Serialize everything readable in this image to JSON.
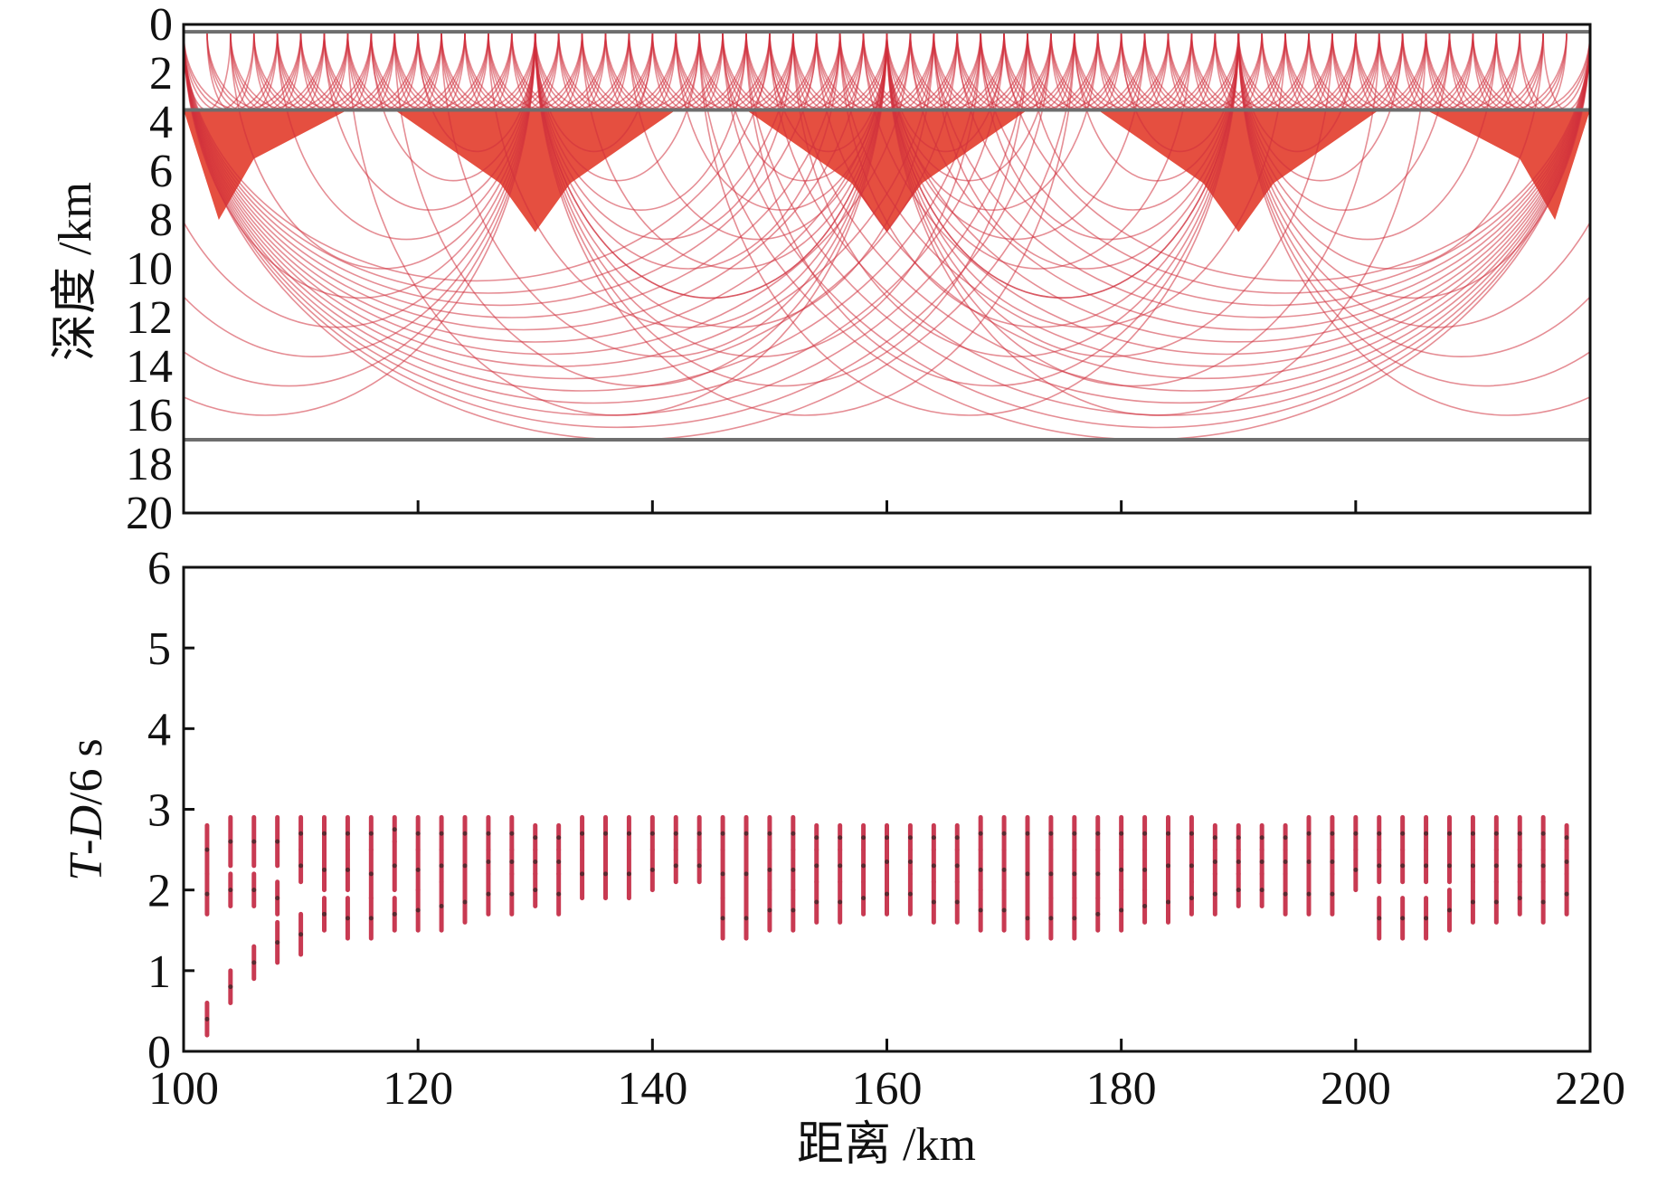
{
  "chart_data": [
    {
      "type": "line",
      "panel": "top",
      "title": "",
      "xlabel": "",
      "ylabel": "深度 /km",
      "xlim": [
        100,
        220
      ],
      "ylim": [
        0,
        20
      ],
      "y_inverted": true,
      "xticks": [
        100,
        120,
        140,
        160,
        180,
        200,
        220
      ],
      "yticks": [
        0,
        2,
        4,
        6,
        8,
        10,
        12,
        14,
        16,
        18,
        20
      ],
      "ytick_labels": [
        "0",
        "2",
        "4",
        "6",
        "8",
        "10",
        "12",
        "14",
        "16",
        "18",
        "20"
      ],
      "layer_boundaries_km": [
        0.3,
        3.5,
        17.0
      ],
      "ray_sources_x": [
        100,
        130,
        160,
        190,
        220
      ],
      "arc_groups": [
        {
          "name": "surface-rays",
          "x_start": 100,
          "x_end": 220,
          "step": 2,
          "spans": [
            4,
            6,
            8,
            10
          ]
        },
        {
          "name": "deep-rays-left",
          "from": 100,
          "to_min": 150,
          "to_max": 176,
          "step": 2
        },
        {
          "name": "deep-rays-right",
          "from": 220,
          "to_min": 144,
          "to_max": 170,
          "step": 2
        }
      ],
      "series": [
        {
          "name": "layer boundary 1",
          "depth": 0.3
        },
        {
          "name": "layer boundary 2",
          "depth": 3.5
        },
        {
          "name": "layer boundary 3",
          "depth": 17.0
        }
      ]
    },
    {
      "type": "scatter",
      "panel": "bottom",
      "title": "",
      "xlabel": "距离 /km",
      "ylabel_T": "T",
      "ylabel_dash": "-",
      "ylabel_D": "D",
      "ylabel_rest": "/6 s",
      "xlim": [
        100,
        220
      ],
      "ylim": [
        0,
        6
      ],
      "xticks": [
        100,
        120,
        140,
        160,
        180,
        200,
        220
      ],
      "xtick_labels": [
        "100",
        "120",
        "140",
        "160",
        "180",
        "200",
        "220"
      ],
      "yticks": [
        0,
        1,
        2,
        3,
        4,
        5,
        6
      ],
      "ytick_labels": [
        "0",
        "1",
        "2",
        "3",
        "4",
        "5",
        "6"
      ],
      "traces": [
        {
          "x": 102,
          "segments": [
            [
              0.2,
              0.6
            ],
            [
              1.7,
              2.2
            ],
            [
              2.2,
              2.8
            ]
          ]
        },
        {
          "x": 104,
          "segments": [
            [
              0.6,
              1.0
            ],
            [
              1.8,
              2.2
            ],
            [
              2.3,
              2.9
            ]
          ]
        },
        {
          "x": 106,
          "segments": [
            [
              0.9,
              1.3
            ],
            [
              1.8,
              2.2
            ],
            [
              2.3,
              2.9
            ]
          ]
        },
        {
          "x": 108,
          "segments": [
            [
              1.1,
              1.6
            ],
            [
              1.7,
              2.1
            ],
            [
              2.3,
              2.9
            ]
          ]
        },
        {
          "x": 110,
          "segments": [
            [
              1.2,
              1.7
            ],
            [
              2.1,
              2.5
            ],
            [
              2.5,
              2.9
            ]
          ]
        },
        {
          "x": 112,
          "segments": [
            [
              1.5,
              1.9
            ],
            [
              2.0,
              2.5
            ],
            [
              2.5,
              2.9
            ]
          ]
        },
        {
          "x": 114,
          "segments": [
            [
              1.4,
              1.9
            ],
            [
              2.0,
              2.5
            ],
            [
              2.5,
              2.9
            ]
          ]
        },
        {
          "x": 116,
          "segments": [
            [
              1.4,
              1.9
            ],
            [
              1.9,
              2.5
            ],
            [
              2.5,
              2.9
            ]
          ]
        },
        {
          "x": 118,
          "segments": [
            [
              1.5,
              1.9
            ],
            [
              2.0,
              2.6
            ],
            [
              2.6,
              2.9
            ]
          ]
        },
        {
          "x": 120,
          "segments": [
            [
              1.5,
              2.0
            ],
            [
              2.0,
              2.5
            ],
            [
              2.5,
              2.9
            ]
          ]
        },
        {
          "x": 122,
          "segments": [
            [
              1.5,
              2.1
            ],
            [
              2.1,
              2.5
            ],
            [
              2.5,
              2.9
            ]
          ]
        },
        {
          "x": 124,
          "segments": [
            [
              1.6,
              2.1
            ],
            [
              2.1,
              2.5
            ],
            [
              2.5,
              2.9
            ]
          ]
        },
        {
          "x": 126,
          "segments": [
            [
              1.7,
              2.2
            ],
            [
              2.2,
              2.5
            ],
            [
              2.5,
              2.9
            ]
          ]
        },
        {
          "x": 128,
          "segments": [
            [
              1.7,
              2.2
            ],
            [
              2.2,
              2.5
            ],
            [
              2.5,
              2.9
            ]
          ]
        },
        {
          "x": 130,
          "segments": [
            [
              1.8,
              2.2
            ],
            [
              2.2,
              2.5
            ],
            [
              2.5,
              2.8
            ]
          ]
        },
        {
          "x": 132,
          "segments": [
            [
              1.7,
              2.2
            ],
            [
              2.2,
              2.5
            ],
            [
              2.5,
              2.8
            ]
          ]
        },
        {
          "x": 134,
          "segments": [
            [
              1.9,
              2.5
            ],
            [
              2.5,
              2.9
            ]
          ]
        },
        {
          "x": 136,
          "segments": [
            [
              1.9,
              2.5
            ],
            [
              2.5,
              2.9
            ]
          ]
        },
        {
          "x": 138,
          "segments": [
            [
              1.9,
              2.5
            ],
            [
              2.5,
              2.9
            ]
          ]
        },
        {
          "x": 140,
          "segments": [
            [
              2.0,
              2.5
            ],
            [
              2.5,
              2.9
            ]
          ]
        },
        {
          "x": 142,
          "segments": [
            [
              2.1,
              2.5
            ],
            [
              2.5,
              2.9
            ]
          ]
        },
        {
          "x": 144,
          "segments": [
            [
              2.1,
              2.5
            ],
            [
              2.5,
              2.9
            ]
          ]
        },
        {
          "x": 146,
          "segments": [
            [
              1.4,
              1.9
            ],
            [
              1.9,
              2.5
            ],
            [
              2.5,
              2.9
            ]
          ]
        },
        {
          "x": 148,
          "segments": [
            [
              1.4,
              1.9
            ],
            [
              1.9,
              2.5
            ],
            [
              2.5,
              2.9
            ]
          ]
        },
        {
          "x": 150,
          "segments": [
            [
              1.5,
              2.0
            ],
            [
              2.0,
              2.5
            ],
            [
              2.5,
              2.9
            ]
          ]
        },
        {
          "x": 152,
          "segments": [
            [
              1.5,
              2.0
            ],
            [
              2.0,
              2.5
            ],
            [
              2.5,
              2.9
            ]
          ]
        },
        {
          "x": 154,
          "segments": [
            [
              1.6,
              2.1
            ],
            [
              2.1,
              2.5
            ],
            [
              2.5,
              2.8
            ]
          ]
        },
        {
          "x": 156,
          "segments": [
            [
              1.6,
              2.1
            ],
            [
              2.1,
              2.5
            ],
            [
              2.5,
              2.8
            ]
          ]
        },
        {
          "x": 158,
          "segments": [
            [
              1.7,
              2.1
            ],
            [
              2.1,
              2.5
            ],
            [
              2.5,
              2.8
            ]
          ]
        },
        {
          "x": 160,
          "segments": [
            [
              1.7,
              2.2
            ],
            [
              2.2,
              2.5
            ],
            [
              2.5,
              2.8
            ]
          ]
        },
        {
          "x": 162,
          "segments": [
            [
              1.7,
              2.2
            ],
            [
              2.2,
              2.5
            ],
            [
              2.5,
              2.8
            ]
          ]
        },
        {
          "x": 164,
          "segments": [
            [
              1.6,
              2.1
            ],
            [
              2.1,
              2.5
            ],
            [
              2.5,
              2.8
            ]
          ]
        },
        {
          "x": 166,
          "segments": [
            [
              1.6,
              2.1
            ],
            [
              2.1,
              2.5
            ],
            [
              2.5,
              2.8
            ]
          ]
        },
        {
          "x": 168,
          "segments": [
            [
              1.5,
              2.0
            ],
            [
              2.0,
              2.5
            ],
            [
              2.5,
              2.9
            ]
          ]
        },
        {
          "x": 170,
          "segments": [
            [
              1.5,
              2.0
            ],
            [
              2.0,
              2.5
            ],
            [
              2.5,
              2.9
            ]
          ]
        },
        {
          "x": 172,
          "segments": [
            [
              1.4,
              1.9
            ],
            [
              1.9,
              2.5
            ],
            [
              2.5,
              2.9
            ]
          ]
        },
        {
          "x": 174,
          "segments": [
            [
              1.4,
              1.9
            ],
            [
              1.9,
              2.5
            ],
            [
              2.5,
              2.9
            ]
          ]
        },
        {
          "x": 176,
          "segments": [
            [
              1.4,
              1.9
            ],
            [
              1.9,
              2.5
            ],
            [
              2.5,
              2.9
            ]
          ]
        },
        {
          "x": 178,
          "segments": [
            [
              1.5,
              1.9
            ],
            [
              1.9,
              2.5
            ],
            [
              2.5,
              2.9
            ]
          ]
        },
        {
          "x": 180,
          "segments": [
            [
              1.5,
              2.0
            ],
            [
              2.0,
              2.5
            ],
            [
              2.5,
              2.9
            ]
          ]
        },
        {
          "x": 182,
          "segments": [
            [
              1.6,
              2.0
            ],
            [
              2.0,
              2.5
            ],
            [
              2.5,
              2.9
            ]
          ]
        },
        {
          "x": 184,
          "segments": [
            [
              1.6,
              2.1
            ],
            [
              2.1,
              2.5
            ],
            [
              2.5,
              2.9
            ]
          ]
        },
        {
          "x": 186,
          "segments": [
            [
              1.7,
              2.1
            ],
            [
              2.1,
              2.5
            ],
            [
              2.5,
              2.9
            ]
          ]
        },
        {
          "x": 188,
          "segments": [
            [
              1.7,
              2.2
            ],
            [
              2.2,
              2.5
            ],
            [
              2.5,
              2.8
            ]
          ]
        },
        {
          "x": 190,
          "segments": [
            [
              1.8,
              2.2
            ],
            [
              2.2,
              2.5
            ],
            [
              2.5,
              2.8
            ]
          ]
        },
        {
          "x": 192,
          "segments": [
            [
              1.8,
              2.2
            ],
            [
              2.2,
              2.5
            ],
            [
              2.5,
              2.8
            ]
          ]
        },
        {
          "x": 194,
          "segments": [
            [
              1.7,
              2.2
            ],
            [
              2.2,
              2.5
            ],
            [
              2.5,
              2.8
            ]
          ]
        },
        {
          "x": 196,
          "segments": [
            [
              1.7,
              2.2
            ],
            [
              2.2,
              2.5
            ],
            [
              2.5,
              2.9
            ]
          ]
        },
        {
          "x": 198,
          "segments": [
            [
              1.7,
              2.2
            ],
            [
              2.2,
              2.5
            ],
            [
              2.5,
              2.9
            ]
          ]
        },
        {
          "x": 200,
          "segments": [
            [
              2.0,
              2.5
            ],
            [
              2.5,
              2.9
            ]
          ]
        },
        {
          "x": 202,
          "segments": [
            [
              1.4,
              1.9
            ],
            [
              2.1,
              2.5
            ],
            [
              2.5,
              2.9
            ]
          ]
        },
        {
          "x": 204,
          "segments": [
            [
              1.4,
              1.9
            ],
            [
              2.1,
              2.5
            ],
            [
              2.5,
              2.9
            ]
          ]
        },
        {
          "x": 206,
          "segments": [
            [
              1.4,
              1.9
            ],
            [
              2.1,
              2.5
            ],
            [
              2.5,
              2.9
            ]
          ]
        },
        {
          "x": 208,
          "segments": [
            [
              1.5,
              2.0
            ],
            [
              2.1,
              2.5
            ],
            [
              2.5,
              2.9
            ]
          ]
        },
        {
          "x": 210,
          "segments": [
            [
              1.6,
              2.1
            ],
            [
              2.1,
              2.5
            ],
            [
              2.5,
              2.9
            ]
          ]
        },
        {
          "x": 212,
          "segments": [
            [
              1.6,
              2.1
            ],
            [
              2.1,
              2.5
            ],
            [
              2.5,
              2.9
            ]
          ]
        },
        {
          "x": 214,
          "segments": [
            [
              1.7,
              2.1
            ],
            [
              2.1,
              2.5
            ],
            [
              2.5,
              2.9
            ]
          ]
        },
        {
          "x": 216,
          "segments": [
            [
              1.6,
              2.1
            ],
            [
              2.1,
              2.5
            ],
            [
              2.5,
              2.9
            ]
          ]
        },
        {
          "x": 218,
          "segments": [
            [
              1.7,
              2.2
            ],
            [
              2.2,
              2.5
            ],
            [
              2.5,
              2.8
            ]
          ]
        }
      ]
    }
  ]
}
